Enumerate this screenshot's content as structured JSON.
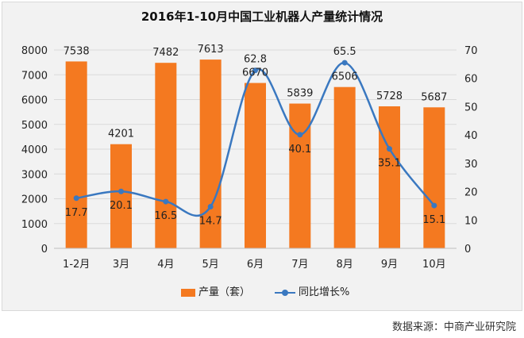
{
  "title": "2016年1-10月中国工业机器人产量统计情况",
  "source_text": "数据来源：中商产业研究院",
  "colors": {
    "bar": "#f47920",
    "line": "#3a78c0",
    "grid": "#d9d9d9",
    "background": "#f2f2f2"
  },
  "chart_data": {
    "type": "bar",
    "categories": [
      "1-2月",
      "3月",
      "4月",
      "5月",
      "6月",
      "7月",
      "8月",
      "9月",
      "10月"
    ],
    "series": [
      {
        "name": "产量（套）",
        "type": "bar",
        "axis": "left",
        "values": [
          7538,
          4201,
          7482,
          7613,
          6670,
          5839,
          6506,
          5728,
          5687
        ]
      },
      {
        "name": "同比增长%",
        "type": "line",
        "axis": "right",
        "values": [
          17.7,
          20.1,
          16.5,
          14.7,
          62.8,
          40.1,
          65.5,
          35.1,
          15.1
        ]
      }
    ],
    "y_left": {
      "min": 0,
      "max": 8000,
      "step": 1000,
      "ticks": [
        "0",
        "1000",
        "2000",
        "3000",
        "4000",
        "5000",
        "6000",
        "7000",
        "8000"
      ]
    },
    "y_right": {
      "min": 0,
      "max": 70,
      "step": 10,
      "ticks": [
        "0",
        "10",
        "20",
        "30",
        "40",
        "50",
        "60",
        "70"
      ]
    },
    "grid": true,
    "legend_position": "bottom"
  }
}
